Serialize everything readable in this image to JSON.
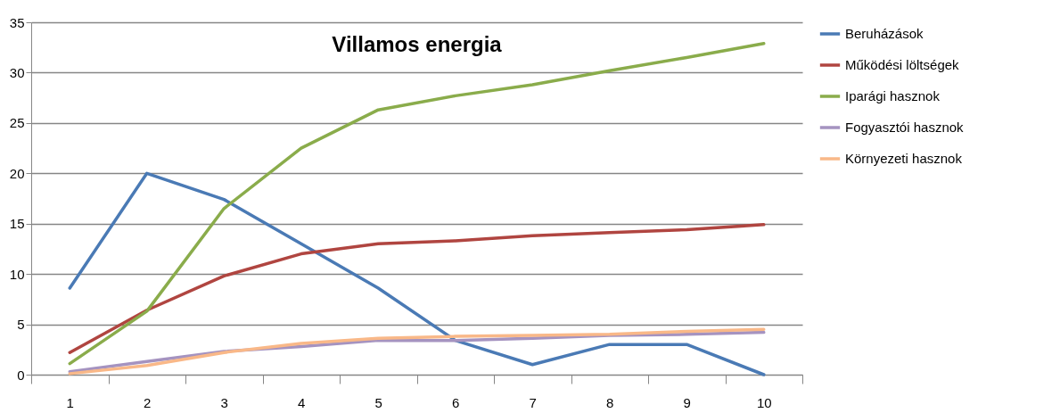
{
  "chart_data": {
    "type": "line",
    "title": "Villamos energia",
    "categories": [
      "1",
      "2",
      "3",
      "4",
      "5",
      "6",
      "7",
      "8",
      "9",
      "10"
    ],
    "series": [
      {
        "name": "Beruházások",
        "color": "#4a7ab5",
        "values": [
          8.6,
          20,
          17.4,
          13,
          8.6,
          3.4,
          1,
          3,
          3,
          0
        ]
      },
      {
        "name": "Működési löltségek",
        "color": "#b04540",
        "values": [
          2.2,
          6.4,
          9.8,
          12,
          13,
          13.3,
          13.8,
          14.1,
          14.4,
          14.9
        ]
      },
      {
        "name": "Iparági hasznok",
        "color": "#8aac4b",
        "values": [
          1.1,
          6.3,
          16.5,
          22.5,
          26.3,
          27.7,
          28.8,
          30.2,
          31.5,
          32.9
        ]
      },
      {
        "name": "Fogyasztói hasznok",
        "color": "#a593c0",
        "values": [
          0.3,
          1.3,
          2.3,
          2.8,
          3.4,
          3.4,
          3.6,
          3.9,
          4.0,
          4.2
        ]
      },
      {
        "name": "Környezeti hasznok",
        "color": "#f9b888",
        "values": [
          0.1,
          0.9,
          2.2,
          3.1,
          3.6,
          3.8,
          3.9,
          4.0,
          4.3,
          4.5
        ]
      }
    ],
    "ylim": [
      0,
      35
    ],
    "yticks": [
      0,
      5,
      10,
      15,
      20,
      25,
      30,
      35
    ],
    "grid": "y",
    "legend": "right",
    "marker": "none",
    "line_style": "solid"
  }
}
